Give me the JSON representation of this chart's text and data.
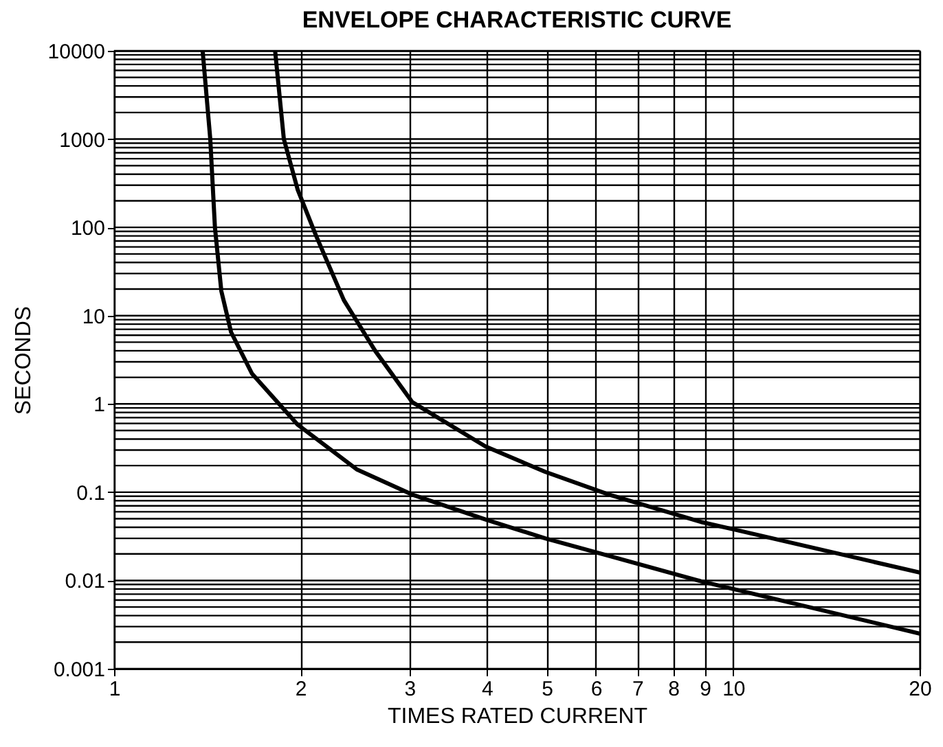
{
  "chart_data": {
    "type": "line",
    "title": "ENVELOPE CHARACTERISTIC CURVE",
    "xlabel": "TIMES RATED CURRENT",
    "ylabel": "SECONDS",
    "log": "xy",
    "grid": true,
    "marker": "none",
    "line_style": "solid",
    "xlim": [
      1,
      20
    ],
    "xticks": [
      1,
      2,
      3,
      4,
      5,
      6,
      7,
      8,
      9,
      10,
      20
    ],
    "ylim": [
      0.001,
      10000
    ],
    "yticks": [
      0.001,
      0.01,
      0.1,
      1,
      10,
      100,
      1000,
      10000
    ],
    "series": [
      {
        "color": "#000000",
        "x": [
          1.39,
          1.43,
          1.455,
          1.49,
          1.545,
          1.67,
          1.98,
          2.47,
          3.03,
          3.98,
          4.97,
          6.3,
          8.87,
          20
        ],
        "values": [
          10000,
          1000,
          100,
          19,
          6.5,
          2.2,
          0.58,
          0.18,
          0.094,
          0.049,
          0.03,
          0.019,
          0.0098,
          0.0025
        ]
      },
      {
        "color": "#000000",
        "x": [
          1.82,
          1.88,
          1.98,
          2.12,
          2.35,
          2.64,
          3.03,
          3.98,
          4.97,
          6.3,
          8.87,
          10,
          20
        ],
        "values": [
          10000,
          1000,
          265,
          80,
          15,
          4,
          1.05,
          0.33,
          0.17,
          0.094,
          0.046,
          0.038,
          0.0123
        ]
      }
    ]
  }
}
